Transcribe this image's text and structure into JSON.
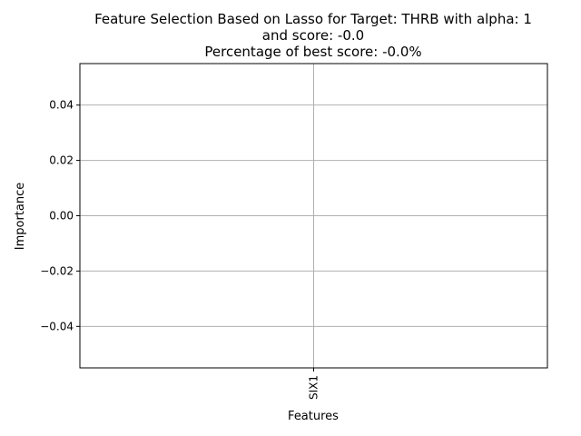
{
  "chart_data": {
    "type": "bar",
    "title_lines": [
      "Feature Selection Based on Lasso for Target: THRB with alpha: 1",
      "and score: -0.0",
      "Percentage of best score: -0.0%"
    ],
    "xlabel": "Features",
    "ylabel": "Importance",
    "categories": [
      "SIX1"
    ],
    "values": [
      0.0
    ],
    "ylim": [
      -0.055,
      0.055
    ],
    "yticks": [
      -0.04,
      -0.02,
      0.0,
      0.02,
      0.04
    ],
    "ytick_labels": [
      "−0.04",
      "−0.02",
      "0.00",
      "0.02",
      "0.04"
    ],
    "grid": true,
    "colors": {
      "grid": "#b0b0b0",
      "axis": "#000000",
      "bar": "#1f77b4"
    }
  }
}
